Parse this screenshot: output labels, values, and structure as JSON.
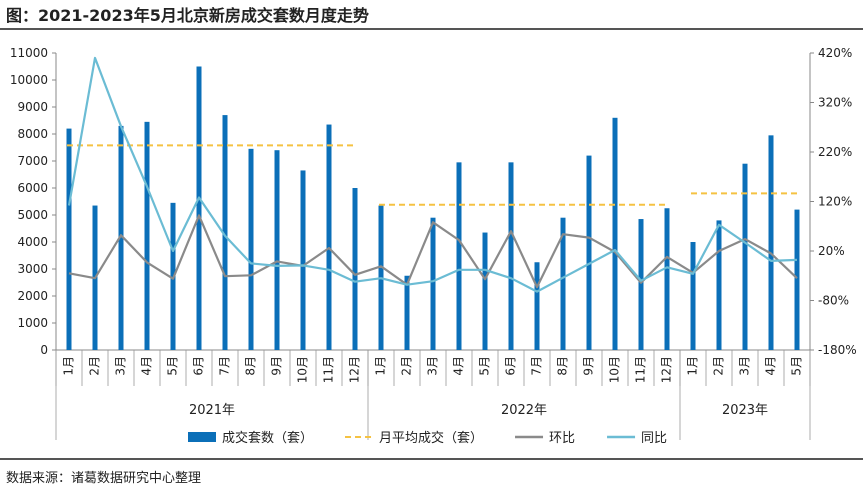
{
  "title": "图：2021-2023年5月北京新房成交套数月度走势",
  "source": "数据来源：诸葛数据研究中心整理",
  "chart_data": {
    "type": "bar",
    "categories": [
      "1月",
      "2月",
      "3月",
      "4月",
      "5月",
      "6月",
      "7月",
      "8月",
      "9月",
      "10月",
      "11月",
      "12月",
      "1月",
      "2月",
      "3月",
      "4月",
      "5月",
      "6月",
      "7月",
      "8月",
      "9月",
      "10月",
      "11月",
      "12月",
      "1月",
      "2月",
      "3月",
      "4月",
      "5月"
    ],
    "years": [
      {
        "label": "2021年",
        "start": 0,
        "end": 11
      },
      {
        "label": "2022年",
        "start": 12,
        "end": 23
      },
      {
        "label": "2023年",
        "start": 24,
        "end": 28
      }
    ],
    "ylim_left": [
      0,
      11000
    ],
    "yticks_left": [
      "0",
      "1000",
      "2000",
      "3000",
      "4000",
      "5000",
      "6000",
      "7000",
      "8000",
      "9000",
      "10000",
      "11000"
    ],
    "ylim_right": [
      -180,
      420
    ],
    "yticks_right": [
      "-180%",
      "-80%",
      "20%",
      "120%",
      "220%",
      "320%",
      "420%"
    ],
    "series": [
      {
        "name": "成交套数（套）",
        "type": "bar",
        "axis": "left",
        "color": "#0b6fb8",
        "values": [
          8200,
          5350,
          8300,
          8450,
          5450,
          10500,
          8700,
          7450,
          7400,
          6650,
          8350,
          6000,
          5350,
          2750,
          4900,
          6950,
          4350,
          6950,
          3250,
          4900,
          7200,
          8600,
          4850,
          5250,
          4000,
          4800,
          6900,
          7950,
          5200
        ]
      },
      {
        "name": "月平均成交（套）",
        "type": "avg",
        "axis": "left",
        "color": "#f5c242",
        "segments": [
          {
            "from": 0,
            "to": 11,
            "value": 7580
          },
          {
            "from": 12,
            "to": 23,
            "value": 5380
          },
          {
            "from": 24,
            "to": 28,
            "value": 5800
          }
        ]
      },
      {
        "name": "环比",
        "type": "line",
        "axis": "right",
        "color": "#8a8a8a",
        "values": [
          -25,
          -35,
          52,
          -3,
          -36,
          92,
          -31,
          -29,
          -1,
          -10,
          26,
          -28,
          -11,
          -48,
          78,
          42,
          -37,
          60,
          -53,
          54,
          47,
          18,
          -44,
          8,
          -24,
          20,
          44,
          15,
          -35
        ]
      },
      {
        "name": "同比",
        "type": "line",
        "axis": "right",
        "color": "#6bbcd4",
        "values": [
          112,
          410,
          272,
          150,
          20,
          128,
          51,
          -5,
          -10,
          -9,
          -18,
          -42,
          -35,
          -48,
          -41,
          -18,
          -18,
          -35,
          -62,
          -34,
          -6,
          22,
          -40,
          -13,
          -26,
          73,
          37,
          0,
          2
        ]
      }
    ],
    "legend_position": "bottom",
    "grid": false
  }
}
